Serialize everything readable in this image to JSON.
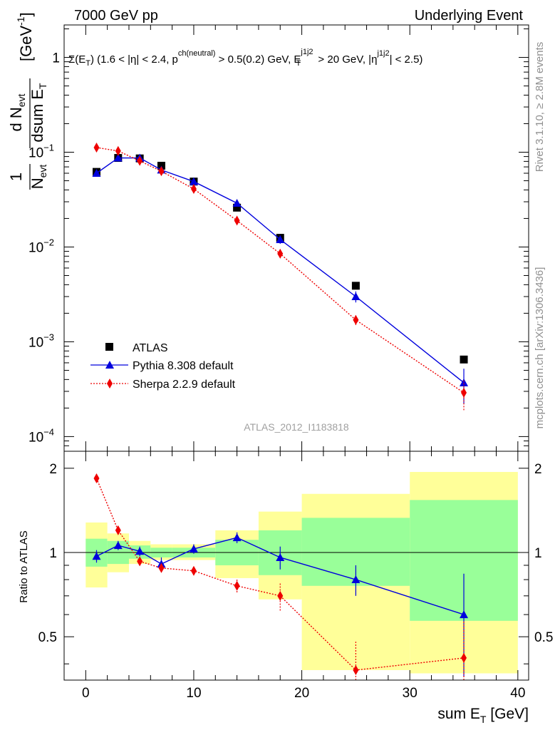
{
  "header": {
    "left": "7000 GeV pp",
    "right": "Underlying Event"
  },
  "side_labels": {
    "rivet": "Rivet 3.1.10, ≥ 2.8M events",
    "mcplots": "mcplots.cern.ch [arXiv:1306.3436]"
  },
  "chart_data": [
    {
      "type": "scatter",
      "panel": "main",
      "title": "Σ(E_T) (1.6 < |η| < 2.4, p_T^ch(neutral) > 0.5(0.2) GeV, E_T^j1j2 > 20 GeV, |η^j1j2| < 2.5)",
      "title_parts": {
        "lead": "Σ(E",
        "sub_T1": "T",
        "mid1": ") (1.6 < |η| < 2.4, p",
        "sup_ch": "ch(neutral)",
        "mid2": " > 0.5(0.2) GeV, E",
        "sup_j": "j1j2",
        "sub_T2": "T",
        "mid3": " > 20 GeV, |η",
        "sup_j2": "j1j2",
        "tail": "| < 2.5)"
      },
      "ylabel": "1/N_evt dN_evt/dsum E_T [GeV⁻¹]",
      "ylabel_parts": {
        "one": "1",
        "Nevt": "N",
        "evt_sub": "evt",
        "dN": "d N",
        "dsum": "dsum E",
        "T_sub": "T",
        "unit": "[GeV",
        "unit_sup": "-1",
        "unit_close": "]"
      },
      "yscale": "log",
      "ylim": [
        7e-05,
        2.2
      ],
      "xlim": [
        -2,
        41
      ],
      "yticks": [
        {
          "value": 1,
          "base": "1",
          "exp": ""
        },
        {
          "value": 0.1,
          "base": "10",
          "exp": "−1"
        },
        {
          "value": 0.01,
          "base": "10",
          "exp": "−2"
        },
        {
          "value": 0.001,
          "base": "10",
          "exp": "−3"
        },
        {
          "value": 0.0001,
          "base": "10",
          "exp": "−4"
        }
      ],
      "watermark": "ATLAS_2012_I1183818",
      "legend": {
        "placement": "bottom-left",
        "entries": [
          "ATLAS",
          "Pythia 8.308 default",
          "Sherpa 2.2.9 default"
        ]
      },
      "series": [
        {
          "name": "ATLAS",
          "color": "#000000",
          "marker": "square",
          "x": [
            1,
            3,
            5,
            7,
            10,
            14,
            18,
            25,
            35
          ],
          "y": [
            0.062,
            0.087,
            0.086,
            0.072,
            0.049,
            0.026,
            0.0125,
            0.0039,
            0.00065
          ]
        },
        {
          "name": "Pythia 8.308 default",
          "color": "#0000dd",
          "marker": "triangle",
          "line": "solid",
          "x": [
            1,
            3,
            5,
            7,
            10,
            14,
            18,
            25,
            35
          ],
          "y": [
            0.06,
            0.087,
            0.087,
            0.065,
            0.049,
            0.029,
            0.012,
            0.003,
            0.00037
          ],
          "err": [
            0.003,
            0.004,
            0.004,
            0.003,
            0.003,
            0.0015,
            0.0012,
            0.0004,
            0.00015
          ]
        },
        {
          "name": "Sherpa 2.2.9 default",
          "color": "#ee0000",
          "marker": "diamond",
          "line": "dotted",
          "x": [
            1,
            3,
            5,
            7,
            10,
            14,
            18,
            25,
            35
          ],
          "y": [
            0.112,
            0.103,
            0.081,
            0.063,
            0.041,
            0.019,
            0.0085,
            0.0017,
            0.00029
          ],
          "err": [
            0.004,
            0.004,
            0.003,
            0.003,
            0.002,
            0.001,
            0.0008,
            0.0002,
            0.0001
          ]
        }
      ]
    },
    {
      "type": "line",
      "panel": "ratio",
      "ylabel": "Ratio to ATLAS",
      "xlabel": "sum E_T [GeV]",
      "xlabel_parts": {
        "base": "sum E",
        "sub": "T",
        "unit": " [GeV]"
      },
      "xlim": [
        -2,
        41
      ],
      "ylim": [
        0.35,
        2.3
      ],
      "yscale": "log",
      "xticks": [
        0,
        10,
        20,
        30,
        40
      ],
      "yticks": [
        {
          "value": 0.5,
          "label": "0.5"
        },
        {
          "value": 1,
          "label": "1"
        },
        {
          "value": 2,
          "label": "2"
        }
      ],
      "bands": {
        "bin_edges": [
          0,
          2,
          4,
          6,
          8,
          12,
          16,
          20,
          30,
          40
        ],
        "stat_low": [
          0.89,
          0.91,
          0.95,
          0.96,
          0.96,
          0.9,
          0.83,
          0.76,
          0.57
        ],
        "stat_high": [
          1.12,
          1.1,
          1.06,
          1.04,
          1.04,
          1.11,
          1.2,
          1.33,
          1.54
        ],
        "total_low": [
          0.75,
          0.85,
          0.91,
          0.94,
          0.94,
          0.81,
          0.68,
          0.38,
          0.37
        ],
        "total_high": [
          1.28,
          1.17,
          1.1,
          1.07,
          1.07,
          1.2,
          1.4,
          1.62,
          1.94
        ],
        "stat_color": "#99ff99",
        "total_color": "#ffff99"
      },
      "series": [
        {
          "name": "Pythia 8.308 default",
          "color": "#0000dd",
          "x": [
            1,
            3,
            5,
            7,
            10,
            14,
            18,
            25,
            35
          ],
          "y": [
            0.97,
            1.06,
            1.01,
            0.91,
            1.03,
            1.13,
            0.96,
            0.8,
            0.6
          ],
          "err": [
            0.05,
            0.04,
            0.04,
            0.05,
            0.04,
            0.05,
            0.09,
            0.1,
            0.24
          ]
        },
        {
          "name": "Sherpa 2.2.9 default",
          "color": "#ee0000",
          "x": [
            1,
            3,
            5,
            7,
            10,
            14,
            18,
            25,
            35
          ],
          "y": [
            1.84,
            1.2,
            0.93,
            0.88,
            0.86,
            0.76,
            0.7,
            0.38,
            0.42
          ],
          "err": [
            0.05,
            0.04,
            0.03,
            0.03,
            0.03,
            0.04,
            0.08,
            0.1,
            0.15
          ]
        }
      ]
    }
  ]
}
